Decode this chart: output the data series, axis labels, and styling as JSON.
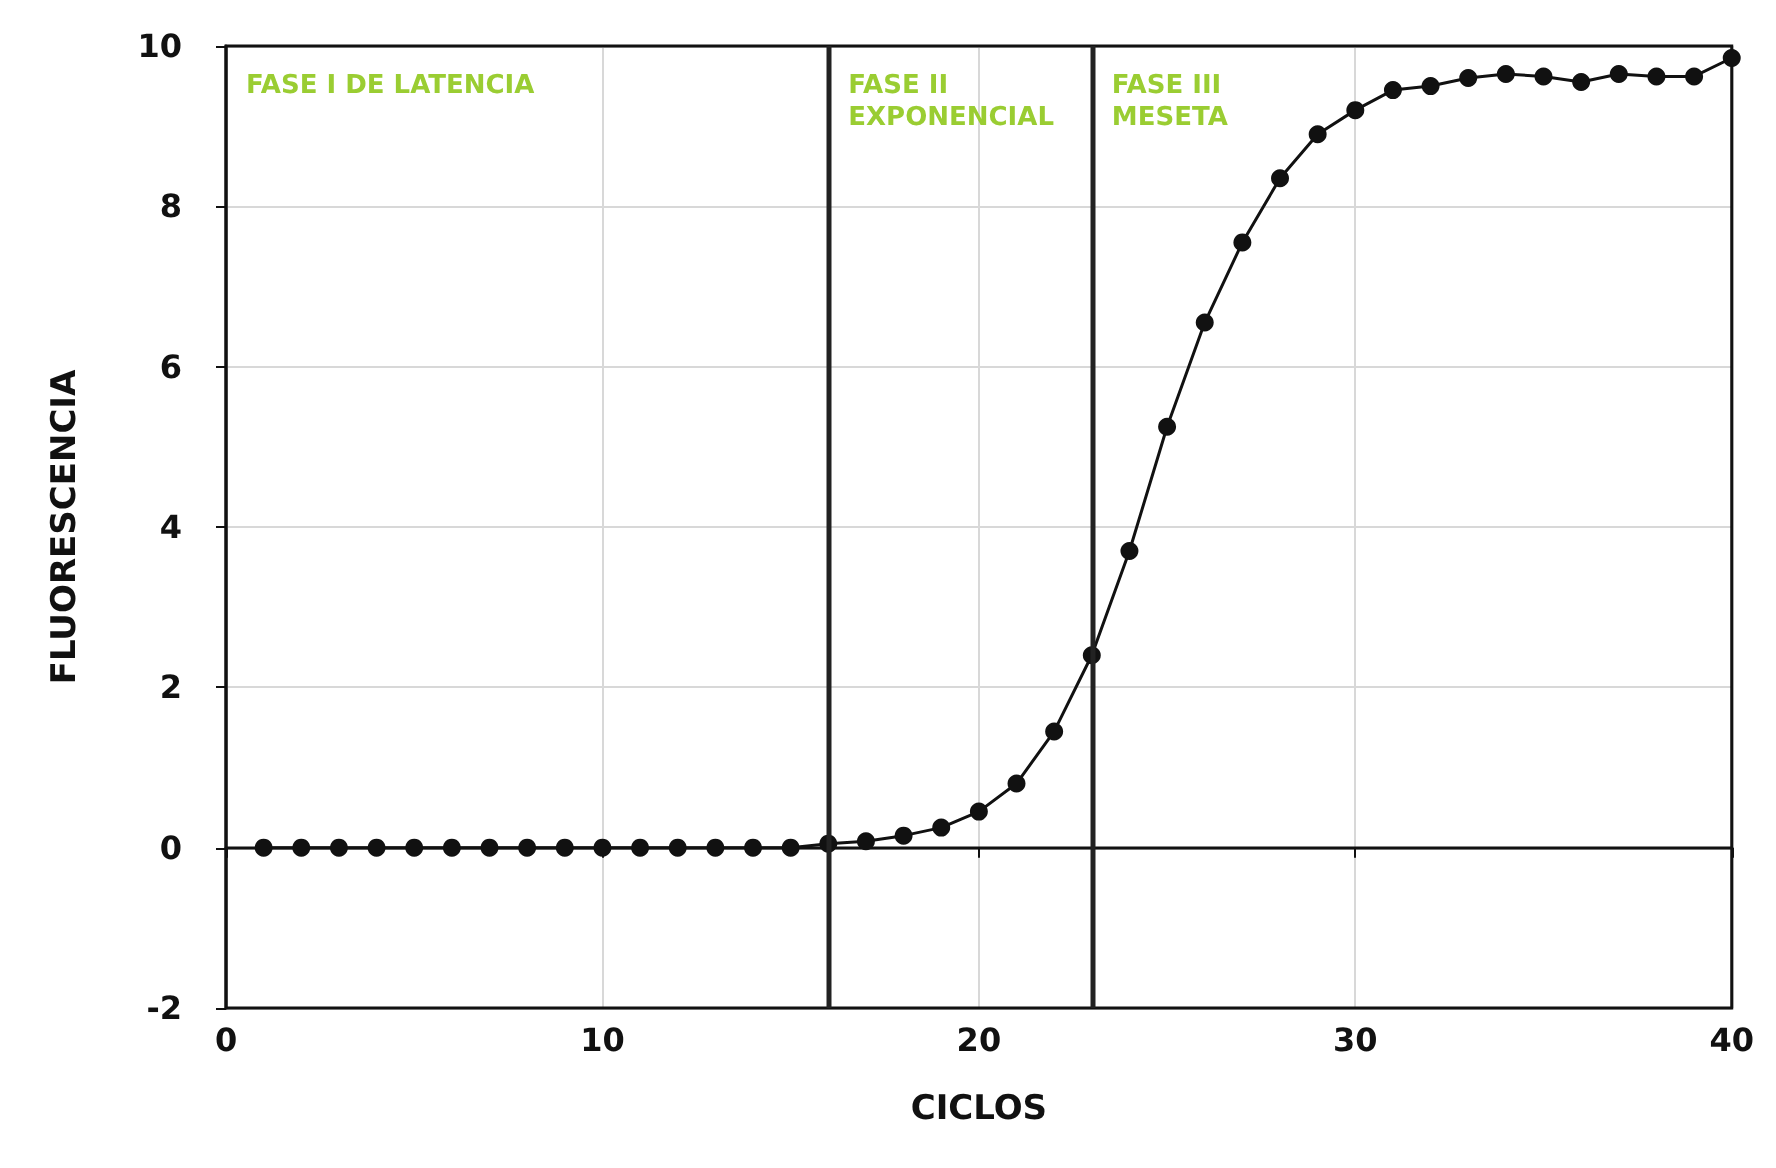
{
  "chart_data": {
    "type": "line",
    "xlabel": "CICLOS",
    "ylabel": "FLUORESCENCIA",
    "x": [
      1,
      2,
      3,
      4,
      5,
      6,
      7,
      8,
      9,
      10,
      11,
      12,
      13,
      14,
      15,
      16,
      17,
      18,
      19,
      20,
      21,
      22,
      23,
      24,
      25,
      26,
      27,
      28,
      29,
      30,
      31,
      32,
      33,
      34,
      35,
      36,
      37,
      38,
      39,
      40
    ],
    "series": [
      {
        "color": "#111111",
        "values": [
          0,
          0,
          0,
          0,
          0,
          0,
          0,
          0,
          0,
          0,
          0,
          0,
          0,
          0,
          0,
          0.05,
          0.08,
          0.15,
          0.25,
          0.45,
          0.8,
          1.45,
          2.4,
          3.7,
          5.25,
          6.55,
          7.55,
          8.35,
          8.9,
          9.2,
          9.45,
          9.5,
          9.6,
          9.65,
          9.62,
          9.55,
          9.65,
          9.62,
          9.62,
          9.85
        ]
      }
    ],
    "xlim": [
      0,
      40
    ],
    "xticks": [
      0,
      10,
      20,
      30,
      40
    ],
    "ylim": [
      -2,
      10
    ],
    "yticks": [
      -2,
      0,
      2,
      4,
      6,
      8,
      10
    ],
    "grid": true,
    "marker": "circle",
    "line_style": "solid",
    "ref_lines": [
      {
        "axis": "x",
        "value": 16,
        "color": "#222222"
      },
      {
        "axis": "x",
        "value": 23,
        "color": "#222222"
      }
    ],
    "annotations": [
      "FASE I DE LATENCIA",
      "FASE II\nEXPONENCIAL",
      "FASE III\nMESETA"
    ]
  }
}
